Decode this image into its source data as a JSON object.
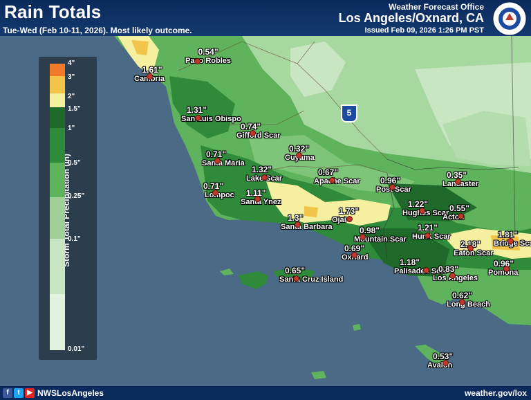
{
  "header": {
    "title": "Rain Totals",
    "subtitle": "Tue-Wed (Feb 10-11, 2026). Most likely outcome.",
    "office": "Weather Forecast Office",
    "location": "Los Angeles/Oxnard, CA",
    "issued": "Issued Feb 09, 2026 1:26 PM PST"
  },
  "footer": {
    "handle": "NWSLosAngeles",
    "website": "weather.gov/lox"
  },
  "legend": {
    "title": "Storm Total Precipitation (in)",
    "ticks": [
      "4\"",
      "3\"",
      "2\"",
      "1.5\"",
      "1\"",
      "0.5\"",
      "0.25\"",
      "0.1\"",
      "0.01\""
    ]
  },
  "highway_shield": "5",
  "stations": [
    {
      "name": "Paso Robles",
      "value": "0.54\""
    },
    {
      "name": "Cambria",
      "value": "1.61\""
    },
    {
      "name": "San Luis Obispo",
      "value": "1.31\""
    },
    {
      "name": "Gifford Scar",
      "value": "0.74\""
    },
    {
      "name": "Santa Maria",
      "value": "0.71\""
    },
    {
      "name": "Cuyama",
      "value": "0.32\""
    },
    {
      "name": "Lompoc",
      "value": "0.71\""
    },
    {
      "name": "Lake Scar",
      "value": "1.32\""
    },
    {
      "name": "Santa Ynez",
      "value": "1.11\""
    },
    {
      "name": "Apache Scar",
      "value": "0.67\""
    },
    {
      "name": "Post Scar",
      "value": "0.96\""
    },
    {
      "name": "Lancaster",
      "value": "0.35\""
    },
    {
      "name": "Santa Barbara",
      "value": "1.3\""
    },
    {
      "name": "Ojai",
      "value": "1.73\""
    },
    {
      "name": "Hughes Scar",
      "value": "1.22\""
    },
    {
      "name": "Acton",
      "value": "0.55\""
    },
    {
      "name": "Mountain Scar",
      "value": "0.98\""
    },
    {
      "name": "Oxnard",
      "value": "0.69\""
    },
    {
      "name": "Hurst Scar",
      "value": "1.21\""
    },
    {
      "name": "Eaton Scar",
      "value": "2.18\""
    },
    {
      "name": "Bridge Scar",
      "value": "1.81\""
    },
    {
      "name": "Santa Cruz Island",
      "value": "0.65\""
    },
    {
      "name": "Palisades Scar",
      "value": "1.18\""
    },
    {
      "name": "Los Angeles",
      "value": "0.83\""
    },
    {
      "name": "Pomona",
      "value": "0.96\""
    },
    {
      "name": "Long Beach",
      "value": "0.62\""
    },
    {
      "name": "Avalon",
      "value": "0.53\""
    }
  ],
  "colors": {
    "ocean": "#4a6a86",
    "land_light": "#c9e6c3",
    "land_mid": "#9fd09a",
    "land_green": "#5fb35c",
    "land_dark": "#2f8a3a",
    "land_darker": "#1f6a2a",
    "yellow": "#f5f0a0",
    "orange": "#f2c44a",
    "legend_top": "#f07a2a"
  }
}
